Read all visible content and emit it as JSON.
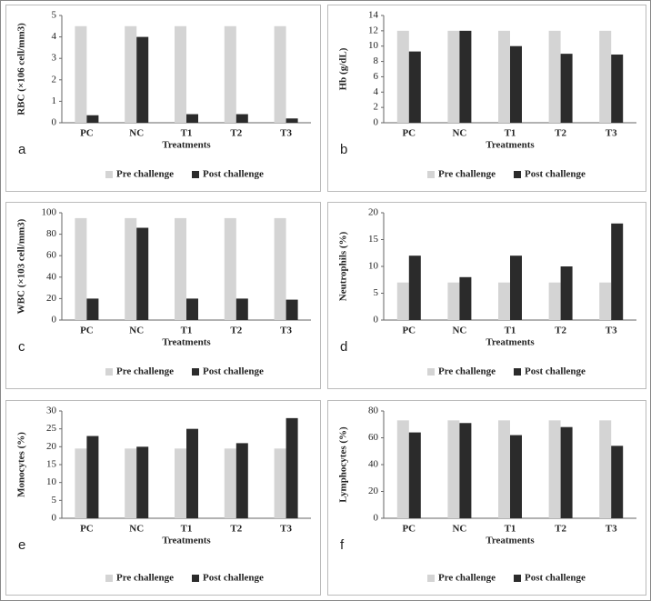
{
  "chart_data": [
    {
      "type": "bar",
      "panel_label": "a",
      "y_label": "RBC (×106 cell/mm3)",
      "x_label": "Treatments",
      "categories": [
        "PC",
        "NC",
        "T1",
        "T2",
        "T3"
      ],
      "series": [
        {
          "name": "Pre challenge",
          "color": "#d4d4d4",
          "values": [
            4.5,
            4.5,
            4.5,
            4.5,
            4.5
          ]
        },
        {
          "name": "Post challenge",
          "color": "#2b2b2b",
          "values": [
            0.35,
            4.0,
            0.4,
            0.4,
            0.2
          ]
        }
      ],
      "ylim": [
        0,
        5
      ],
      "yticks": [
        0,
        1,
        2,
        3,
        4,
        5
      ]
    },
    {
      "type": "bar",
      "panel_label": "b",
      "y_label": "Hb (g/dL)",
      "x_label": "Treatments",
      "categories": [
        "PC",
        "NC",
        "T1",
        "T2",
        "T3"
      ],
      "series": [
        {
          "name": "Pre challenge",
          "color": "#d4d4d4",
          "values": [
            12,
            12,
            12,
            12,
            12
          ]
        },
        {
          "name": "Post challenge",
          "color": "#2b2b2b",
          "values": [
            9.3,
            12,
            10,
            9,
            8.9
          ]
        }
      ],
      "ylim": [
        0,
        14
      ],
      "yticks": [
        0,
        2,
        4,
        6,
        8,
        10,
        12,
        14
      ]
    },
    {
      "type": "bar",
      "panel_label": "c",
      "y_label": "WBC (×103 cell/mm3)",
      "x_label": "Treatments",
      "categories": [
        "PC",
        "NC",
        "T1",
        "T2",
        "T3"
      ],
      "series": [
        {
          "name": "Pre challenge",
          "color": "#d4d4d4",
          "values": [
            95,
            95,
            95,
            95,
            95
          ]
        },
        {
          "name": "Post challenge",
          "color": "#2b2b2b",
          "values": [
            20,
            86,
            20,
            20,
            19
          ]
        }
      ],
      "ylim": [
        0,
        100
      ],
      "yticks": [
        0,
        20,
        40,
        60,
        80,
        100
      ]
    },
    {
      "type": "bar",
      "panel_label": "d",
      "y_label": "Neutrophils (%)",
      "x_label": "Treatments",
      "categories": [
        "PC",
        "NC",
        "T1",
        "T2",
        "T3"
      ],
      "series": [
        {
          "name": "Pre challenge",
          "color": "#d4d4d4",
          "values": [
            7,
            7,
            7,
            7,
            7
          ]
        },
        {
          "name": "Post challenge",
          "color": "#2b2b2b",
          "values": [
            12,
            8,
            12,
            10,
            18
          ]
        }
      ],
      "ylim": [
        0,
        20
      ],
      "yticks": [
        0,
        5,
        10,
        15,
        20
      ]
    },
    {
      "type": "bar",
      "panel_label": "e",
      "y_label": "Monocytes (%)",
      "x_label": "Treatments",
      "categories": [
        "PC",
        "NC",
        "T1",
        "T2",
        "T3"
      ],
      "series": [
        {
          "name": "Pre challenge",
          "color": "#d4d4d4",
          "values": [
            19.5,
            19.5,
            19.5,
            19.5,
            19.5
          ]
        },
        {
          "name": "Post challenge",
          "color": "#2b2b2b",
          "values": [
            23,
            20,
            25,
            21,
            28
          ]
        }
      ],
      "ylim": [
        0,
        30
      ],
      "yticks": [
        0,
        5,
        10,
        15,
        20,
        25,
        30
      ]
    },
    {
      "type": "bar",
      "panel_label": "f",
      "y_label": "Lymphocytes (%)",
      "x_label": "Treatments",
      "categories": [
        "PC",
        "NC",
        "T1",
        "T2",
        "T3"
      ],
      "series": [
        {
          "name": "Pre challenge",
          "color": "#d4d4d4",
          "values": [
            73,
            73,
            73,
            73,
            73
          ]
        },
        {
          "name": "Post challenge",
          "color": "#2b2b2b",
          "values": [
            64,
            71,
            62,
            68,
            54
          ]
        }
      ],
      "ylim": [
        0,
        80
      ],
      "yticks": [
        0,
        20,
        40,
        60,
        80
      ]
    }
  ]
}
